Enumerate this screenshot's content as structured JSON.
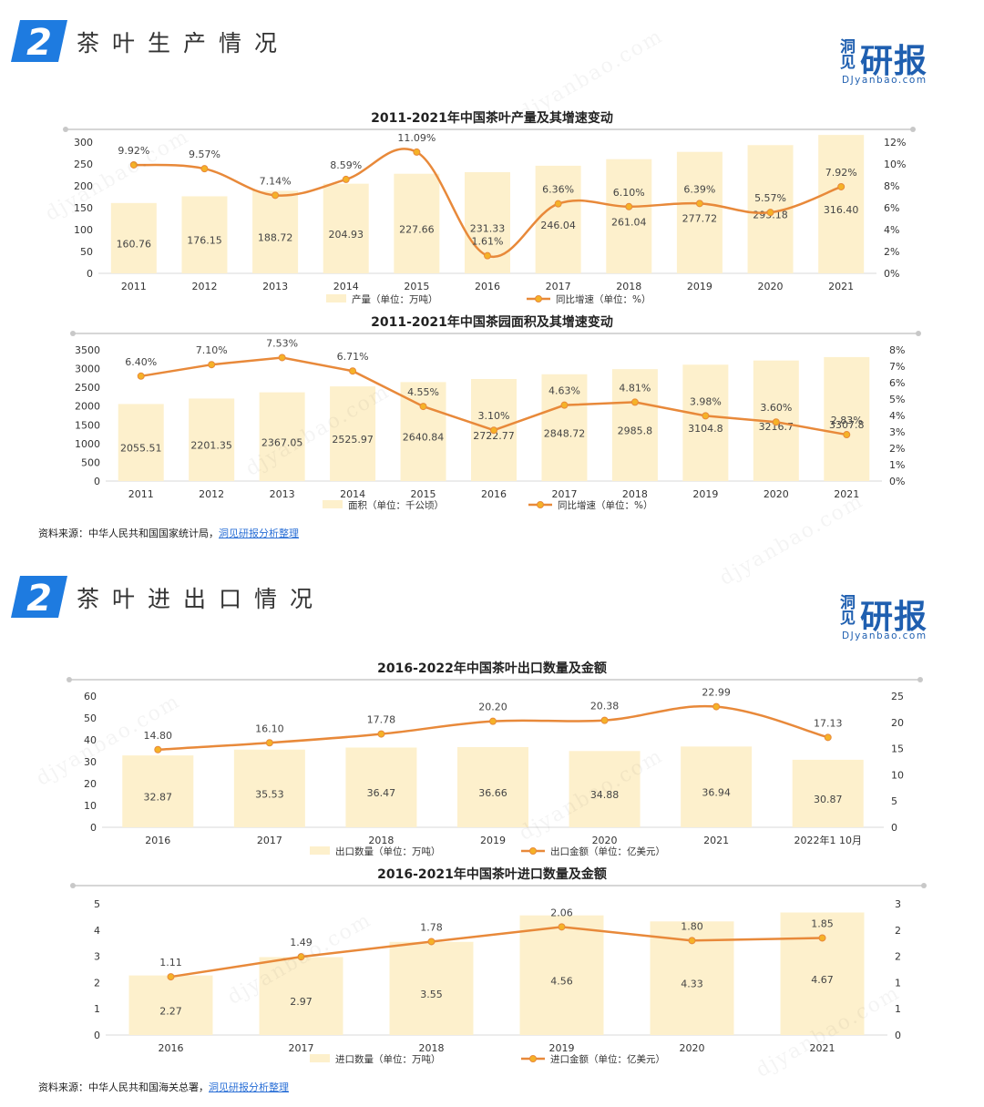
{
  "sections": [
    {
      "number": "2",
      "title": "茶叶生产情况"
    },
    {
      "number": "2",
      "title": "茶叶进出口情况"
    }
  ],
  "logo": {
    "small": "洞见",
    "big": "研报",
    "url": "DJyanbao.com"
  },
  "sources": [
    {
      "prefix": "资料来源：中华人民共和国国家统计局，",
      "link": "洞见研报分析整理"
    },
    {
      "prefix": "资料来源：中华人民共和国海关总署，",
      "link": "洞见研报分析整理"
    }
  ],
  "watermark": "djyanbao.com",
  "colors": {
    "bar": "#FDF0CC",
    "line": "#E8893A",
    "marker": "#F5B227",
    "brand": "#1F5FB0",
    "badge": "#1E7BE0"
  },
  "chart_data": [
    {
      "type": "bar",
      "title": "2011-2021年中国茶叶产量及其增速变动",
      "categories": [
        "2011",
        "2012",
        "2013",
        "2014",
        "2015",
        "2016",
        "2017",
        "2018",
        "2019",
        "2020",
        "2021"
      ],
      "series": [
        {
          "name": "产量（单位：万吨）",
          "type": "bar",
          "axis": "left",
          "values": [
            160.76,
            176.15,
            188.72,
            204.93,
            227.66,
            231.33,
            246.04,
            261.04,
            277.72,
            293.18,
            316.4
          ],
          "labels": [
            "160.76",
            "176.15",
            "188.72",
            "204.93",
            "227.66",
            "231.33",
            "246.04",
            "261.04",
            "277.72",
            "293.18",
            "316.40"
          ]
        },
        {
          "name": "同比增速（单位：%）",
          "type": "line",
          "axis": "right",
          "values": [
            9.92,
            9.57,
            7.14,
            8.59,
            11.09,
            1.61,
            6.36,
            6.1,
            6.39,
            5.57,
            7.92
          ],
          "labels": [
            "9.92%",
            "9.57%",
            "7.14%",
            "8.59%",
            "11.09%",
            "1.61%",
            "6.36%",
            "6.10%",
            "6.39%",
            "5.57%",
            "7.92%"
          ]
        }
      ],
      "left_axis": {
        "min": 0,
        "max": 300,
        "ticks": [
          "0",
          "50",
          "100",
          "150",
          "200",
          "250",
          "300"
        ]
      },
      "right_axis": {
        "min": 0,
        "max": 12,
        "ticks": [
          "0%",
          "2%",
          "4%",
          "6%",
          "8%",
          "10%",
          "12%"
        ]
      },
      "legend": "bottom"
    },
    {
      "type": "bar",
      "title": "2011-2021年中国茶园面积及其增速变动",
      "categories": [
        "2011",
        "2012",
        "2013",
        "2014",
        "2015",
        "2016",
        "2017",
        "2018",
        "2019",
        "2020",
        "2021"
      ],
      "series": [
        {
          "name": "面积（单位：千公顷）",
          "type": "bar",
          "axis": "left",
          "values": [
            2055.51,
            2201.35,
            2367.05,
            2525.97,
            2640.84,
            2722.77,
            2848.72,
            2985.8,
            3104.8,
            3216.7,
            3307.8
          ],
          "labels": [
            "2055.51",
            "2201.35",
            "2367.05",
            "2525.97",
            "2640.84",
            "2722.77",
            "2848.72",
            "2985.8",
            "3104.8",
            "3216.7",
            "3307.8"
          ]
        },
        {
          "name": "同比增速（单位：%）",
          "type": "line",
          "axis": "right",
          "values": [
            6.4,
            7.1,
            7.53,
            6.71,
            4.55,
            3.1,
            4.63,
            4.81,
            3.98,
            3.6,
            2.83
          ],
          "labels": [
            "6.40%",
            "7.10%",
            "7.53%",
            "6.71%",
            "4.55%",
            "3.10%",
            "4.63%",
            "4.81%",
            "3.98%",
            "3.60%",
            "2.83%"
          ]
        }
      ],
      "left_axis": {
        "min": 0,
        "max": 3500,
        "ticks": [
          "0",
          "500",
          "1000",
          "1500",
          "2000",
          "2500",
          "3000",
          "3500"
        ]
      },
      "right_axis": {
        "min": 0,
        "max": 8,
        "ticks": [
          "0%",
          "1%",
          "2%",
          "3%",
          "4%",
          "5%",
          "6%",
          "7%",
          "8%"
        ]
      },
      "legend": "bottom"
    },
    {
      "type": "bar",
      "title": "2016-2022年中国茶叶出口数量及金额",
      "categories": [
        "2016",
        "2017",
        "2018",
        "2019",
        "2020",
        "2021",
        "2022年1 10月"
      ],
      "series": [
        {
          "name": "出口数量（单位：万吨）",
          "type": "bar",
          "axis": "left",
          "values": [
            32.87,
            35.53,
            36.47,
            36.66,
            34.88,
            36.94,
            30.87
          ],
          "labels": [
            "32.87",
            "35.53",
            "36.47",
            "36.66",
            "34.88",
            "36.94",
            "30.87"
          ]
        },
        {
          "name": "出口金额（单位：亿美元）",
          "type": "line",
          "axis": "right",
          "values": [
            14.8,
            16.1,
            17.78,
            20.2,
            20.38,
            22.99,
            17.13
          ],
          "labels": [
            "14.80",
            "16.10",
            "17.78",
            "20.20",
            "20.38",
            "22.99",
            "17.13"
          ]
        }
      ],
      "left_axis": {
        "min": 0,
        "max": 60,
        "ticks": [
          "0",
          "10",
          "20",
          "30",
          "40",
          "50",
          "60"
        ]
      },
      "right_axis": {
        "min": 0,
        "max": 25,
        "ticks": [
          "0",
          "5",
          "10",
          "15",
          "20",
          "25"
        ]
      },
      "legend": "bottom"
    },
    {
      "type": "bar",
      "title": "2016-2021年中国茶叶进口数量及金额",
      "categories": [
        "2016",
        "2017",
        "2018",
        "2019",
        "2020",
        "2021"
      ],
      "series": [
        {
          "name": "进口数量（单位：万吨）",
          "type": "bar",
          "axis": "left",
          "values": [
            2.27,
            2.97,
            3.55,
            4.56,
            4.33,
            4.67
          ],
          "labels": [
            "2.27",
            "2.97",
            "3.55",
            "4.56",
            "4.33",
            "4.67"
          ]
        },
        {
          "name": "进口金额（单位：亿美元）",
          "type": "line",
          "axis": "right",
          "values": [
            1.11,
            1.49,
            1.78,
            2.06,
            1.8,
            1.85
          ],
          "labels": [
            "1.11",
            "1.49",
            "1.78",
            "2.06",
            "1.80",
            "1.85"
          ]
        }
      ],
      "left_axis": {
        "min": 0,
        "max": 5,
        "ticks": [
          "0",
          "1",
          "2",
          "3",
          "4",
          "5"
        ]
      },
      "right_axis": {
        "min": 0,
        "max": 2.5,
        "ticks": [
          "0",
          "1",
          "1",
          "2",
          "2",
          "3"
        ]
      },
      "legend": "bottom"
    }
  ]
}
